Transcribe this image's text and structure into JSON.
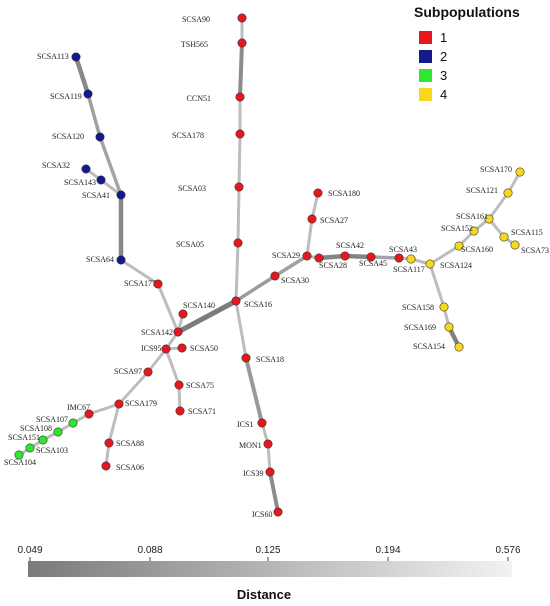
{
  "legend": {
    "title": "Subpopulations",
    "items": [
      {
        "label": "1",
        "color": "#e8171e"
      },
      {
        "label": "2",
        "color": "#141a8c"
      },
      {
        "label": "3",
        "color": "#2ee82e"
      },
      {
        "label": "4",
        "color": "#f7d81e"
      }
    ]
  },
  "scale": {
    "ticks": [
      "0.049",
      "0.088",
      "0.125",
      "0.194",
      "0.576"
    ],
    "title": "Distance",
    "gradient": [
      "#7a7a7a",
      "#f2f2f2"
    ]
  },
  "nodes": [
    {
      "id": "SCSA90",
      "group": "1"
    },
    {
      "id": "TSH565",
      "group": "1"
    },
    {
      "id": "CCN51",
      "group": "1"
    },
    {
      "id": "SCSA178",
      "group": "1"
    },
    {
      "id": "SCSA03",
      "group": "1"
    },
    {
      "id": "SCSA05",
      "group": "1"
    },
    {
      "id": "SCSA16",
      "group": "1"
    },
    {
      "id": "SCSA18",
      "group": "1"
    },
    {
      "id": "ICS1",
      "group": "1"
    },
    {
      "id": "MON1",
      "group": "1"
    },
    {
      "id": "ICS39",
      "group": "1"
    },
    {
      "id": "ICS60",
      "group": "1"
    },
    {
      "id": "SCSA30",
      "group": "1"
    },
    {
      "id": "SCSA29",
      "group": "1"
    },
    {
      "id": "SCSA27",
      "group": "1"
    },
    {
      "id": "SCSA180",
      "group": "1"
    },
    {
      "id": "SCSA28",
      "group": "1"
    },
    {
      "id": "SCSA42",
      "group": "1"
    },
    {
      "id": "SCSA45",
      "group": "1"
    },
    {
      "id": "SCSA43",
      "group": "1"
    },
    {
      "id": "SCSA142",
      "group": "1"
    },
    {
      "id": "SCSA140",
      "group": "1"
    },
    {
      "id": "SCSA177",
      "group": "1"
    },
    {
      "id": "ICS95",
      "group": "1"
    },
    {
      "id": "SCSA50",
      "group": "1"
    },
    {
      "id": "SCSA75",
      "group": "1"
    },
    {
      "id": "SCSA71",
      "group": "1"
    },
    {
      "id": "SCSA97",
      "group": "1"
    },
    {
      "id": "SCSA179",
      "group": "1"
    },
    {
      "id": "SCSA88",
      "group": "1"
    },
    {
      "id": "SCSA06",
      "group": "1"
    },
    {
      "id": "IMC67",
      "group": "1"
    },
    {
      "id": "SCSA113",
      "group": "2"
    },
    {
      "id": "SCSA119",
      "group": "2"
    },
    {
      "id": "SCSA120",
      "group": "2"
    },
    {
      "id": "SCSA32",
      "group": "2"
    },
    {
      "id": "SCSA143",
      "group": "2"
    },
    {
      "id": "SCSA41",
      "group": "2"
    },
    {
      "id": "SCSA64",
      "group": "2"
    },
    {
      "id": "SCSA107",
      "group": "3"
    },
    {
      "id": "SCSA108",
      "group": "3"
    },
    {
      "id": "SCSA151",
      "group": "3"
    },
    {
      "id": "SCSA103",
      "group": "3"
    },
    {
      "id": "SCSA104",
      "group": "3"
    },
    {
      "id": "SCSA117",
      "group": "4"
    },
    {
      "id": "SCSA124",
      "group": "4"
    },
    {
      "id": "SCSA160",
      "group": "4"
    },
    {
      "id": "SCSA152",
      "group": "4"
    },
    {
      "id": "SCSA161",
      "group": "4"
    },
    {
      "id": "SCSA121",
      "group": "4"
    },
    {
      "id": "SCSA170",
      "group": "4"
    },
    {
      "id": "SCSA115",
      "group": "4"
    },
    {
      "id": "SCSA73",
      "group": "4"
    },
    {
      "id": "SCSA158",
      "group": "4"
    },
    {
      "id": "SCSA169",
      "group": "4"
    },
    {
      "id": "SCSA154",
      "group": "4"
    }
  ],
  "edges": [
    [
      "SCSA90",
      "TSH565"
    ],
    [
      "TSH565",
      "CCN51"
    ],
    [
      "CCN51",
      "SCSA178"
    ],
    [
      "SCSA178",
      "SCSA03"
    ],
    [
      "SCSA03",
      "SCSA05"
    ],
    [
      "SCSA05",
      "SCSA16"
    ],
    [
      "SCSA16",
      "SCSA18"
    ],
    [
      "SCSA18",
      "ICS1"
    ],
    [
      "ICS1",
      "MON1"
    ],
    [
      "MON1",
      "ICS39"
    ],
    [
      "ICS39",
      "ICS60"
    ],
    [
      "SCSA16",
      "SCSA30"
    ],
    [
      "SCSA30",
      "SCSA29"
    ],
    [
      "SCSA29",
      "SCSA27"
    ],
    [
      "SCSA27",
      "SCSA180"
    ],
    [
      "SCSA29",
      "SCSA28"
    ],
    [
      "SCSA28",
      "SCSA42"
    ],
    [
      "SCSA42",
      "SCSA45"
    ],
    [
      "SCSA45",
      "SCSA43"
    ],
    [
      "SCSA43",
      "SCSA117"
    ],
    [
      "SCSA117",
      "SCSA124"
    ],
    [
      "SCSA124",
      "SCSA160"
    ],
    [
      "SCSA160",
      "SCSA152"
    ],
    [
      "SCSA152",
      "SCSA161"
    ],
    [
      "SCSA161",
      "SCSA121"
    ],
    [
      "SCSA121",
      "SCSA170"
    ],
    [
      "SCSA161",
      "SCSA115"
    ],
    [
      "SCSA115",
      "SCSA73"
    ],
    [
      "SCSA124",
      "SCSA158"
    ],
    [
      "SCSA158",
      "SCSA169"
    ],
    [
      "SCSA169",
      "SCSA154"
    ],
    [
      "SCSA16",
      "SCSA142"
    ],
    [
      "SCSA142",
      "SCSA140"
    ],
    [
      "SCSA142",
      "SCSA177"
    ],
    [
      "SCSA177",
      "SCSA64"
    ],
    [
      "SCSA64",
      "SCSA41"
    ],
    [
      "SCSA41",
      "SCSA143"
    ],
    [
      "SCSA143",
      "SCSA32"
    ],
    [
      "SCSA41",
      "SCSA120"
    ],
    [
      "SCSA120",
      "SCSA119"
    ],
    [
      "SCSA119",
      "SCSA113"
    ],
    [
      "SCSA142",
      "ICS95"
    ],
    [
      "ICS95",
      "SCSA50"
    ],
    [
      "ICS95",
      "SCSA75"
    ],
    [
      "SCSA75",
      "SCSA71"
    ],
    [
      "ICS95",
      "SCSA97"
    ],
    [
      "SCSA97",
      "SCSA179"
    ],
    [
      "SCSA179",
      "SCSA88"
    ],
    [
      "SCSA88",
      "SCSA06"
    ],
    [
      "SCSA179",
      "IMC67"
    ],
    [
      "IMC67",
      "SCSA107"
    ],
    [
      "SCSA107",
      "SCSA108"
    ],
    [
      "SCSA108",
      "SCSA151"
    ],
    [
      "SCSA151",
      "SCSA103"
    ],
    [
      "SCSA151",
      "SCSA104"
    ]
  ]
}
